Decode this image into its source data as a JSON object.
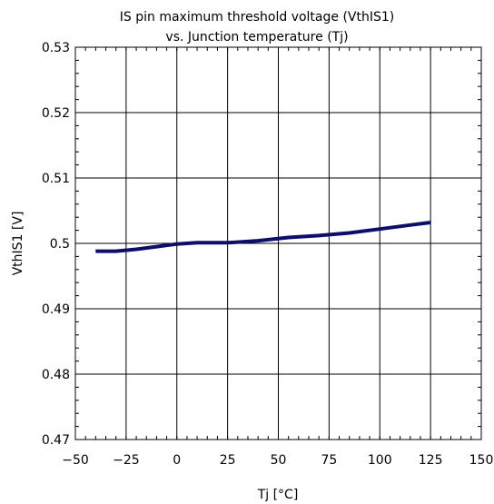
{
  "chart_data": {
    "type": "line",
    "title": "IS pin maximum threshold voltage (VthIS1)",
    "subtitle": "vs. Junction temperature (Tj)",
    "xlabel": "Tj [°C]",
    "ylabel": "VthIS1 [V]",
    "xlim": [
      -50,
      150
    ],
    "ylim": [
      0.47,
      0.53
    ],
    "x_ticks": [
      -50,
      -25,
      0,
      25,
      50,
      75,
      100,
      125,
      150
    ],
    "y_ticks": [
      0.47,
      0.48,
      0.49,
      0.5,
      0.51,
      0.52,
      0.53
    ],
    "x_tick_labels": [
      "−50",
      "−25",
      "0",
      "25",
      "50",
      "75",
      "100",
      "125",
      "150"
    ],
    "y_tick_labels": [
      "0.47",
      "0.48",
      "0.49",
      "0.5",
      "0.51",
      "0.52",
      "0.53"
    ],
    "grid": true,
    "series": [
      {
        "color": "#0d0d6b",
        "x": [
          -40,
          -30,
          -20,
          -10,
          0,
          10,
          25,
          40,
          55,
          70,
          85,
          100,
          115,
          125
        ],
        "y": [
          0.4988,
          0.4988,
          0.4991,
          0.4995,
          0.4999,
          0.5001,
          0.5001,
          0.5004,
          0.5009,
          0.5012,
          0.5016,
          0.5022,
          0.5028,
          0.5032
        ]
      }
    ]
  }
}
